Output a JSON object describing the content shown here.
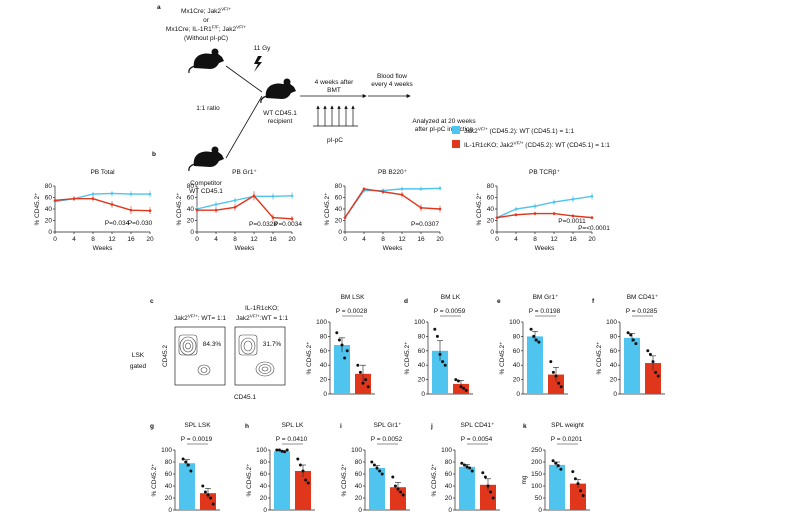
{
  "panel_labels": [
    "a",
    "b",
    "c",
    "d",
    "e",
    "f",
    "g",
    "h",
    "i",
    "j",
    "k"
  ],
  "diagram": {
    "donor_lines": [
      [
        "Mx1Cre; Jak2",
        "VF/+"
      ],
      [
        "or"
      ],
      [
        "Mx1Cre; IL-1R1",
        "F/F",
        "; Jak2",
        "VF/+"
      ],
      [
        "(Without pI-pC)"
      ]
    ],
    "ratio": "1:1 ratio",
    "competitor": [
      "Competitor",
      "WT CD45.1"
    ],
    "irradiation": "11 Gy",
    "recipient": [
      "WT CD45.1",
      "recipient"
    ],
    "treatment_timing": [
      "4 weeks after",
      "BMT"
    ],
    "treatment": "pI-pC",
    "sampling": [
      "Blood flow",
      "every 4 weeks"
    ],
    "endpoint": [
      "Analyzed at 20 weeks",
      "after pI-pC induction"
    ]
  },
  "legend": [
    {
      "name": [
        "Jak2",
        "VF/+",
        " (CD45.2): WT (CD45.1) = 1:1"
      ],
      "color": "#4fc4ef"
    },
    {
      "name": [
        "IL-1R1cKO; Jak2",
        "VF/+",
        " (CD45.2): WT (CD45.1) = 1:1"
      ],
      "color": "#e0361c"
    }
  ],
  "flow": {
    "headers": [
      [
        [
          "Jak2",
          "VF/+",
          ": WT= 1:1"
        ]
      ],
      [
        [
          "IL-1R1cKO;"
        ],
        [
          "Jak2",
          "VF/+",
          ":WT = 1:1"
        ]
      ]
    ],
    "gate_label": [
      "LSK",
      "gated"
    ],
    "y_label": "CD45.2",
    "x_label": "CD45.1",
    "percentages": [
      "84.3%",
      "31.7%"
    ]
  },
  "chart_data": [
    {
      "type": "line",
      "title": "PB Total",
      "x": [
        0,
        4,
        8,
        12,
        16,
        20
      ],
      "xlim": [
        0,
        20
      ],
      "xticks": [
        0,
        4,
        8,
        12,
        16,
        20
      ],
      "ylim": [
        0,
        80
      ],
      "yticks": [
        0,
        20,
        40,
        60,
        80
      ],
      "xlabel": "Weeks",
      "ylabel": "% CD45.2⁺",
      "series": [
        {
          "color": "#4fc4ef",
          "values": [
            53,
            58,
            66,
            67,
            66,
            66
          ],
          "errors": [
            3,
            4,
            4,
            5,
            5,
            6
          ]
        },
        {
          "color": "#e0361c",
          "values": [
            55,
            58,
            58,
            48,
            38,
            37
          ],
          "errors": [
            3,
            4,
            5,
            6,
            7,
            6
          ]
        }
      ],
      "annotations": [
        "P=0.034",
        "P=0.030"
      ]
    },
    {
      "type": "line",
      "title": "PB Gr1⁺",
      "x": [
        0,
        4,
        8,
        12,
        16,
        20
      ],
      "xlim": [
        0,
        20
      ],
      "xticks": [
        0,
        4,
        8,
        12,
        16,
        20
      ],
      "ylim": [
        0,
        80
      ],
      "yticks": [
        0,
        20,
        40,
        60,
        80
      ],
      "xlabel": "Weeks",
      "ylabel": "% CD45.2⁺",
      "series": [
        {
          "color": "#4fc4ef",
          "values": [
            40,
            48,
            55,
            62,
            62,
            63
          ],
          "errors": [
            4,
            5,
            5,
            6,
            6,
            6
          ]
        },
        {
          "color": "#e0361c",
          "values": [
            38,
            38,
            43,
            63,
            25,
            23
          ],
          "errors": [
            4,
            5,
            6,
            8,
            6,
            5
          ]
        }
      ],
      "annotations": [
        "P=0.0328",
        "P=0.0034"
      ]
    },
    {
      "type": "line",
      "title": "PB B220⁺",
      "x": [
        0,
        4,
        8,
        12,
        16,
        20
      ],
      "xlim": [
        0,
        20
      ],
      "xticks": [
        0,
        4,
        8,
        12,
        16,
        20
      ],
      "ylim": [
        0,
        80
      ],
      "yticks": [
        0,
        20,
        40,
        60,
        80
      ],
      "xlabel": "Weeks",
      "ylabel": "% CD45.2⁺",
      "series": [
        {
          "color": "#4fc4ef",
          "values": [
            25,
            72,
            72,
            75,
            75,
            76
          ],
          "errors": [
            3,
            3,
            4,
            4,
            4,
            4
          ]
        },
        {
          "color": "#e0361c",
          "values": [
            25,
            75,
            70,
            65,
            42,
            40
          ],
          "errors": [
            3,
            3,
            4,
            5,
            6,
            6
          ]
        }
      ],
      "annotations": [
        "P=0.0307"
      ]
    },
    {
      "type": "line",
      "title": "PB TCRβ⁺",
      "x": [
        0,
        4,
        8,
        12,
        16,
        20
      ],
      "xlim": [
        0,
        20
      ],
      "xticks": [
        0,
        4,
        8,
        12,
        16,
        20
      ],
      "ylim": [
        0,
        80
      ],
      "yticks": [
        0,
        20,
        40,
        60,
        80
      ],
      "xlabel": "Weeks",
      "ylabel": "% CD45.2⁺",
      "series": [
        {
          "color": "#4fc4ef",
          "values": [
            25,
            40,
            45,
            52,
            57,
            62
          ],
          "errors": [
            3,
            4,
            5,
            5,
            6,
            6
          ]
        },
        {
          "color": "#e0361c",
          "values": [
            25,
            30,
            32,
            32,
            28,
            25
          ],
          "errors": [
            3,
            3,
            3,
            3,
            3,
            3
          ]
        }
      ],
      "annotations": [
        "P=0.0011",
        "P=<0.0001"
      ]
    },
    {
      "type": "bar",
      "title": "BM LSK",
      "ylabel": "% CD45.2⁺",
      "ylim": [
        0,
        100
      ],
      "yticks": [
        0,
        20,
        40,
        60,
        80,
        100
      ],
      "colors": [
        "#4fc4ef",
        "#e0361c"
      ],
      "values": [
        68,
        28
      ],
      "errors": [
        10,
        12
      ],
      "points": [
        [
          85,
          75,
          68,
          50,
          60
        ],
        [
          40,
          30,
          15,
          20,
          10
        ]
      ],
      "annotations": [
        "P = 0.0028"
      ]
    },
    {
      "type": "bar",
      "title": "BM LK",
      "ylabel": "% CD45.2⁺",
      "ylim": [
        0,
        100
      ],
      "yticks": [
        0,
        20,
        40,
        60,
        80,
        100
      ],
      "colors": [
        "#4fc4ef",
        "#e0361c"
      ],
      "values": [
        60,
        14
      ],
      "errors": [
        14,
        5
      ],
      "points": [
        [
          90,
          80,
          55,
          45,
          40
        ],
        [
          20,
          18,
          10,
          8,
          5
        ]
      ],
      "annotations": [
        "P = 0.0059"
      ]
    },
    {
      "type": "bar",
      "title": "BM Gr1⁺",
      "ylabel": "% CD45.2⁺",
      "ylim": [
        0,
        100
      ],
      "yticks": [
        0,
        20,
        40,
        60,
        80,
        100
      ],
      "colors": [
        "#4fc4ef",
        "#e0361c"
      ],
      "values": [
        80,
        27
      ],
      "errors": [
        7,
        10
      ],
      "points": [
        [
          90,
          80,
          75,
          72
        ],
        [
          45,
          30,
          25,
          15,
          10
        ]
      ],
      "annotations": [
        "P = 0.0198"
      ]
    },
    {
      "type": "bar",
      "title": "BM CD41⁺",
      "ylabel": "% CD45.2⁺",
      "ylim": [
        0,
        100
      ],
      "yticks": [
        0,
        20,
        40,
        60,
        80,
        100
      ],
      "colors": [
        "#4fc4ef",
        "#e0361c"
      ],
      "values": [
        78,
        43
      ],
      "errors": [
        6,
        10
      ],
      "points": [
        [
          85,
          82,
          75,
          70
        ],
        [
          60,
          55,
          45,
          30,
          25
        ]
      ],
      "annotations": [
        "P = 0.0285"
      ]
    },
    {
      "type": "bar",
      "title": "SPL LSK",
      "ylabel": "% CD45.2⁺",
      "ylim": [
        0,
        100
      ],
      "yticks": [
        0,
        20,
        40,
        60,
        80,
        100
      ],
      "colors": [
        "#4fc4ef",
        "#e0361c"
      ],
      "values": [
        78,
        28
      ],
      "errors": [
        6,
        8
      ],
      "points": [
        [
          85,
          80,
          75,
          65
        ],
        [
          40,
          30,
          25,
          20,
          10
        ]
      ],
      "annotations": [
        "P = 0.0019"
      ]
    },
    {
      "type": "bar",
      "title": "SPL LK",
      "ylabel": "% CD45.2⁺",
      "ylim": [
        0,
        100
      ],
      "yticks": [
        0,
        20,
        40,
        60,
        80,
        100
      ],
      "colors": [
        "#4fc4ef",
        "#e0361c"
      ],
      "values": [
        98,
        65
      ],
      "errors": [
        1,
        10
      ],
      "points": [
        [
          100,
          100,
          98,
          97,
          100
        ],
        [
          85,
          75,
          65,
          50,
          45
        ]
      ],
      "annotations": [
        "P = 0.0410"
      ]
    },
    {
      "type": "bar",
      "title": "SPL Gr1⁺",
      "ylabel": "% CD45.2⁺",
      "ylim": [
        0,
        100
      ],
      "yticks": [
        0,
        20,
        40,
        60,
        80,
        100
      ],
      "colors": [
        "#4fc4ef",
        "#e0361c"
      ],
      "values": [
        70,
        38
      ],
      "errors": [
        4,
        8
      ],
      "points": [
        [
          80,
          75,
          70,
          65,
          60
        ],
        [
          55,
          40,
          35,
          30,
          25
        ]
      ],
      "annotations": [
        "P = 0.0052"
      ]
    },
    {
      "type": "bar",
      "title": "SPL CD41⁺",
      "ylabel": "% CD45.2⁺",
      "ylim": [
        0,
        100
      ],
      "yticks": [
        0,
        20,
        40,
        60,
        80,
        100
      ],
      "colors": [
        "#4fc4ef",
        "#e0361c"
      ],
      "values": [
        72,
        42
      ],
      "errors": [
        4,
        10
      ],
      "points": [
        [
          78,
          75,
          72,
          70,
          65
        ],
        [
          62,
          55,
          40,
          30,
          20
        ]
      ],
      "annotations": [
        "P = 0.0054"
      ]
    },
    {
      "type": "bar",
      "title": "SPL weight",
      "ylabel": "mg",
      "ylim": [
        0,
        250
      ],
      "yticks": [
        0,
        50,
        100,
        150,
        200,
        250
      ],
      "colors": [
        "#4fc4ef",
        "#e0361c"
      ],
      "values": [
        188,
        110
      ],
      "errors": [
        12,
        18
      ],
      "points": [
        [
          205,
          195,
          185,
          170
        ],
        [
          160,
          130,
          110,
          80,
          60
        ]
      ],
      "annotations": [
        "P = 0.0201"
      ]
    }
  ]
}
